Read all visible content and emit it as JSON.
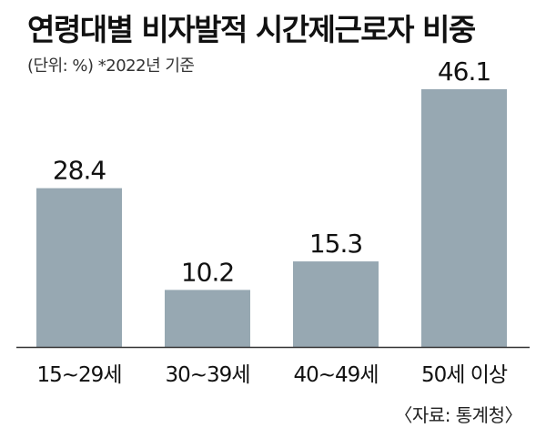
{
  "title": "연령대별 비자발적 시간제근로자 비중",
  "subtitle": "(단위: %) *2022년 기준",
  "source": "〈자료: 통계청〉",
  "colors": {
    "bar": "#97a8b2",
    "axis": "#333333"
  },
  "chart_data": {
    "type": "bar",
    "categories": [
      "15∼29세",
      "30∼39세",
      "40∼49세",
      "50세 이상"
    ],
    "values": [
      28.4,
      10.2,
      15.3,
      46.1
    ],
    "value_labels": [
      "28.4",
      "10.2",
      "15.3",
      "46.1"
    ],
    "ylim": [
      0,
      46.1
    ]
  }
}
